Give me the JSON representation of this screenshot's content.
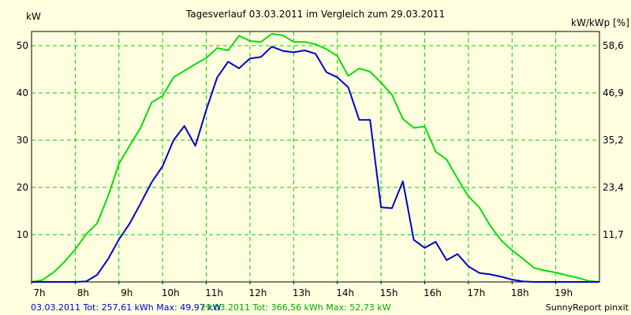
{
  "colors": {
    "background": "#ffffe0",
    "grid": "#00cc00",
    "series_blue": "#0000cc",
    "series_green": "#00e000",
    "axis": "#000000"
  },
  "footer": {
    "blue_text": "03.03.2011 Tot: 257,61 kWh Max: 49,97 kW",
    "green_text": "29.03.2011 Tot: 366,56 kWh Max: 52,73 kW",
    "brand": "SunnyReport pinxit"
  },
  "chart_data": {
    "type": "line",
    "title": "Tagesverlauf 03.03.2011 im Vergleich zum 29.03.2011",
    "ylabel_left": "kW",
    "ylabel_right": "kW/kWp [%]",
    "xlabel": "",
    "xlim": [
      7,
      20
    ],
    "ylim": [
      0,
      53
    ],
    "grid": true,
    "x_ticks": [
      "7h",
      "8h",
      "9h",
      "10h",
      "11h",
      "12h",
      "13h",
      "14h",
      "15h",
      "16h",
      "17h",
      "18h",
      "19h"
    ],
    "y_ticks_left": [
      "10",
      "20",
      "30",
      "40",
      "50"
    ],
    "y_ticks_right": [
      "11,7",
      "23,4",
      "35,2",
      "46,9",
      "58,6"
    ],
    "series": [
      {
        "name": "03.03.2011",
        "color": "#0000cc",
        "x": [
          7.0,
          7.5,
          8.0,
          8.25,
          8.5,
          8.75,
          9.0,
          9.25,
          9.5,
          9.75,
          10.0,
          10.25,
          10.5,
          10.75,
          11.0,
          11.25,
          11.5,
          11.75,
          12.0,
          12.25,
          12.5,
          12.75,
          13.0,
          13.25,
          13.5,
          13.75,
          14.0,
          14.25,
          14.5,
          14.75,
          15.0,
          15.25,
          15.5,
          15.75,
          16.0,
          16.25,
          16.5,
          16.75,
          17.0,
          17.25,
          17.5,
          17.75,
          18.0,
          18.25,
          18.5,
          19.0,
          19.5,
          20.0
        ],
        "values": [
          0,
          0,
          0,
          0.1,
          1.5,
          4.8,
          9.0,
          12.4,
          16.7,
          21.1,
          24.5,
          30.0,
          33.0,
          28.8,
          36.4,
          43.3,
          46.6,
          45.2,
          47.3,
          47.6,
          49.8,
          48.9,
          48.6,
          49.0,
          48.3,
          44.4,
          43.3,
          41.2,
          34.3,
          34.3,
          15.8,
          15.6,
          21.3,
          8.9,
          7.2,
          8.5,
          4.6,
          5.9,
          3.3,
          1.9,
          1.6,
          1.1,
          0.5,
          0.1,
          0,
          0,
          0,
          0
        ]
      },
      {
        "name": "29.03.2011",
        "color": "#00e000",
        "x": [
          7.0,
          7.25,
          7.5,
          7.75,
          8.0,
          8.25,
          8.5,
          8.75,
          9.0,
          9.25,
          9.5,
          9.75,
          10.0,
          10.25,
          10.5,
          10.75,
          11.0,
          11.25,
          11.5,
          11.75,
          12.0,
          12.25,
          12.5,
          12.75,
          13.0,
          13.25,
          13.5,
          13.75,
          14.0,
          14.25,
          14.5,
          14.75,
          15.0,
          15.25,
          15.5,
          15.75,
          16.0,
          16.25,
          16.5,
          16.75,
          17.0,
          17.25,
          17.5,
          17.75,
          18.0,
          18.25,
          18.5,
          18.75,
          19.0,
          19.25,
          19.5,
          19.75,
          20.0
        ],
        "values": [
          0,
          0.4,
          2.0,
          4.2,
          6.9,
          10.1,
          12.4,
          18.1,
          25.0,
          28.9,
          32.7,
          38.0,
          39.4,
          43.3,
          44.7,
          46.1,
          47.4,
          49.5,
          49.0,
          52.1,
          51.0,
          50.8,
          52.5,
          52.2,
          50.8,
          50.8,
          50.3,
          49.3,
          47.8,
          43.6,
          45.2,
          44.5,
          42.2,
          39.6,
          34.5,
          32.6,
          32.9,
          27.6,
          25.9,
          21.9,
          18.1,
          15.8,
          11.9,
          8.8,
          6.7,
          4.9,
          3.0,
          2.4,
          2.0,
          1.4,
          0.9,
          0.2,
          0
        ]
      }
    ]
  }
}
